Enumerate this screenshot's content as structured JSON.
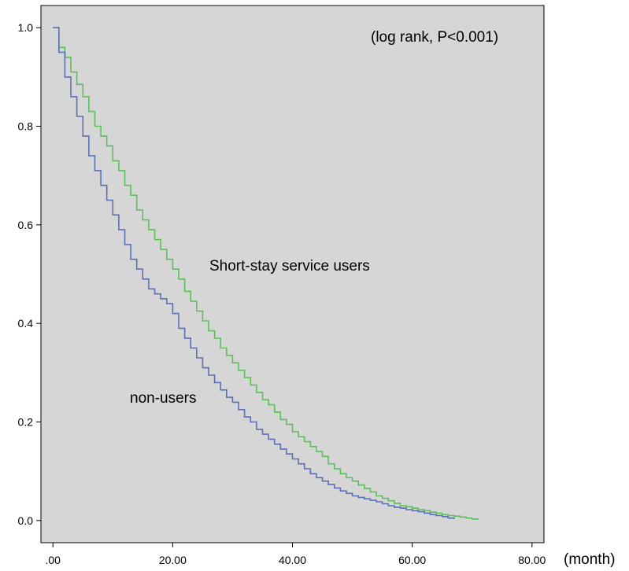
{
  "chart_data": {
    "type": "line",
    "title": "",
    "xlabel": "(month)",
    "ylabel": "",
    "xlim": [
      -2,
      82
    ],
    "ylim": [
      -0.045,
      1.045
    ],
    "x_ticks": [
      {
        "value": 0,
        "label": ".00"
      },
      {
        "value": 20,
        "label": "20.00"
      },
      {
        "value": 40,
        "label": "40.00"
      },
      {
        "value": 60,
        "label": "60.00"
      },
      {
        "value": 80,
        "label": "80.00"
      }
    ],
    "y_ticks": [
      {
        "value": 0.0,
        "label": "0.0"
      },
      {
        "value": 0.2,
        "label": "0.2"
      },
      {
        "value": 0.4,
        "label": "0.4"
      },
      {
        "value": 0.6,
        "label": "0.6"
      },
      {
        "value": 0.8,
        "label": "0.8"
      },
      {
        "value": 1.0,
        "label": "1.0"
      }
    ],
    "grid": false,
    "background_color": "#d6d6d6",
    "step": true,
    "annotations": {
      "logrank": "(log rank, P<0.001)",
      "short_stay_label": "Short-stay service users",
      "non_users_label": "non-users"
    },
    "series": [
      {
        "name": "Short-stay service users",
        "color": "#5cbf5c",
        "x": [
          0,
          1,
          2,
          3,
          4,
          5,
          6,
          7,
          8,
          9,
          10,
          11,
          12,
          13,
          14,
          15,
          16,
          17,
          18,
          19,
          20,
          21,
          22,
          23,
          24,
          25,
          26,
          27,
          28,
          29,
          30,
          31,
          32,
          33,
          34,
          35,
          36,
          37,
          38,
          39,
          40,
          41,
          42,
          43,
          44,
          45,
          46,
          47,
          48,
          49,
          50,
          51,
          52,
          53,
          54,
          55,
          56,
          57,
          58,
          59,
          60,
          61,
          62,
          63,
          64,
          65,
          66,
          67,
          68,
          69,
          70,
          71
        ],
        "y": [
          1.0,
          0.96,
          0.94,
          0.91,
          0.885,
          0.86,
          0.83,
          0.8,
          0.78,
          0.76,
          0.73,
          0.71,
          0.68,
          0.66,
          0.63,
          0.61,
          0.59,
          0.57,
          0.55,
          0.53,
          0.51,
          0.49,
          0.465,
          0.445,
          0.425,
          0.405,
          0.385,
          0.37,
          0.35,
          0.335,
          0.32,
          0.305,
          0.29,
          0.275,
          0.26,
          0.245,
          0.235,
          0.22,
          0.205,
          0.195,
          0.18,
          0.17,
          0.16,
          0.15,
          0.14,
          0.13,
          0.115,
          0.105,
          0.095,
          0.087,
          0.08,
          0.072,
          0.065,
          0.058,
          0.05,
          0.045,
          0.04,
          0.035,
          0.03,
          0.028,
          0.025,
          0.022,
          0.02,
          0.017,
          0.015,
          0.012,
          0.01,
          0.009,
          0.007,
          0.005,
          0.003,
          0.002
        ]
      },
      {
        "name": "non-users",
        "color": "#5b6fb5",
        "x": [
          0,
          1,
          2,
          3,
          4,
          5,
          6,
          7,
          8,
          9,
          10,
          11,
          12,
          13,
          14,
          15,
          16,
          17,
          18,
          19,
          20,
          21,
          22,
          23,
          24,
          25,
          26,
          27,
          28,
          29,
          30,
          31,
          32,
          33,
          34,
          35,
          36,
          37,
          38,
          39,
          40,
          41,
          42,
          43,
          44,
          45,
          46,
          47,
          48,
          49,
          50,
          51,
          52,
          53,
          54,
          55,
          56,
          57,
          58,
          59,
          60,
          61,
          62,
          63,
          64,
          65,
          66,
          67
        ],
        "y": [
          1.0,
          0.95,
          0.9,
          0.86,
          0.82,
          0.78,
          0.74,
          0.71,
          0.68,
          0.65,
          0.62,
          0.59,
          0.56,
          0.53,
          0.51,
          0.49,
          0.47,
          0.46,
          0.45,
          0.44,
          0.42,
          0.39,
          0.37,
          0.35,
          0.33,
          0.31,
          0.295,
          0.28,
          0.265,
          0.25,
          0.24,
          0.225,
          0.21,
          0.2,
          0.185,
          0.175,
          0.165,
          0.155,
          0.145,
          0.135,
          0.125,
          0.115,
          0.105,
          0.095,
          0.087,
          0.08,
          0.073,
          0.066,
          0.06,
          0.055,
          0.05,
          0.047,
          0.044,
          0.041,
          0.038,
          0.034,
          0.03,
          0.027,
          0.025,
          0.022,
          0.02,
          0.018,
          0.015,
          0.012,
          0.01,
          0.008,
          0.005,
          0.003
        ]
      }
    ]
  }
}
